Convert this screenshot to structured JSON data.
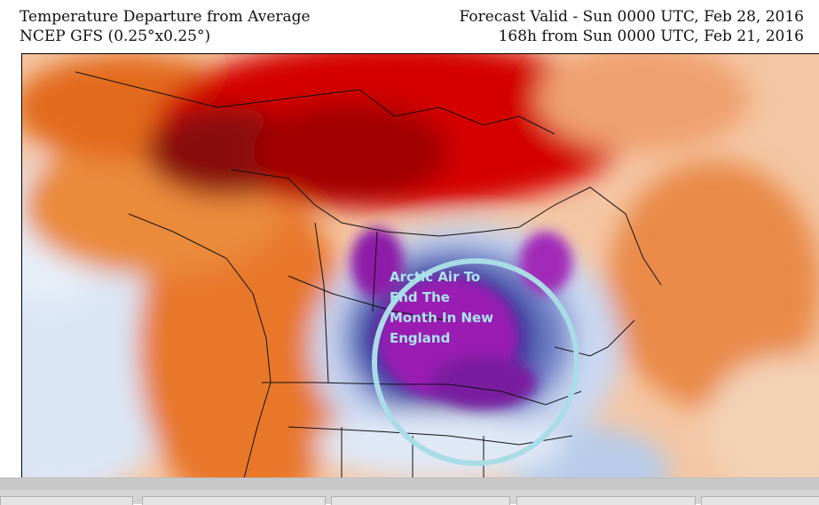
{
  "header": {
    "title": "Temperature Departure from Average",
    "model": "NCEP GFS (0.25°x0.25°)",
    "valid": "Forecast Valid - Sun 0000 UTC, Feb 28, 2016",
    "lead": "168h from Sun 0000 UTC, Feb 21, 2016"
  },
  "annotation": {
    "lines": [
      "Arctic Air To",
      "End The",
      "Month In New",
      "England"
    ],
    "circle_color": "#a8dce6",
    "text_color": "#a7e6ef"
  },
  "colors": {
    "warm_strong": "#d40000",
    "warm_dark": "#7a0000",
    "warm": "#e8641c",
    "warm_light": "#f6b887",
    "neutral": "#ffffff",
    "cool_light": "#c9d9f2",
    "cool": "#6f82c6",
    "cold": "#2a2a8c",
    "very_cold": "#a11ab5"
  },
  "taskbar": {
    "items": [
      "",
      "",
      "",
      "",
      ""
    ]
  }
}
